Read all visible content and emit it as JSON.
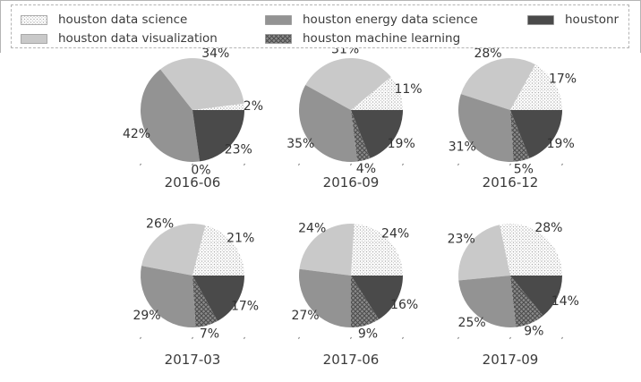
{
  "figure": {
    "background": "#ffffff",
    "frame_color": "#b4b4b4",
    "legend": {
      "border_style": "dashed",
      "border_color": "#b3b3b3",
      "position": "top",
      "ncol": 3
    }
  },
  "chart_data": {
    "type": "pie",
    "layout": "2x3 grid of pies",
    "start_angle": 0,
    "direction": "counterclockwise",
    "pct_label_suffix": "%",
    "label_color": "#333333",
    "series": [
      {
        "name": "houston data science",
        "color": "#ffffff",
        "hatch": "dots",
        "hatch_color": "#ababab"
      },
      {
        "name": "houston data visualization",
        "color": "#c9c9c9",
        "hatch": null,
        "hatch_color": null
      },
      {
        "name": "houston energy data science",
        "color": "#939393",
        "hatch": null,
        "hatch_color": null
      },
      {
        "name": "houston machine learning",
        "color": "#8c8c8c",
        "hatch": "cross",
        "hatch_color": "#4d4d4d"
      },
      {
        "name": "houstonr",
        "color": "#4a4a4a",
        "hatch": null,
        "hatch_color": null
      }
    ],
    "pies": [
      {
        "title": "2016-06",
        "values": [
          2,
          34,
          42,
          0,
          23
        ]
      },
      {
        "title": "2016-09",
        "values": [
          11,
          31,
          35,
          4,
          19
        ]
      },
      {
        "title": "2016-12",
        "values": [
          17,
          28,
          31,
          5,
          19
        ]
      },
      {
        "title": "2017-03",
        "values": [
          21,
          26,
          29,
          7,
          17
        ]
      },
      {
        "title": "2017-06",
        "values": [
          24,
          24,
          27,
          9,
          16
        ]
      },
      {
        "title": "2017-09",
        "values": [
          28,
          23,
          25,
          9,
          14
        ]
      }
    ],
    "tick_glyph": ","
  }
}
